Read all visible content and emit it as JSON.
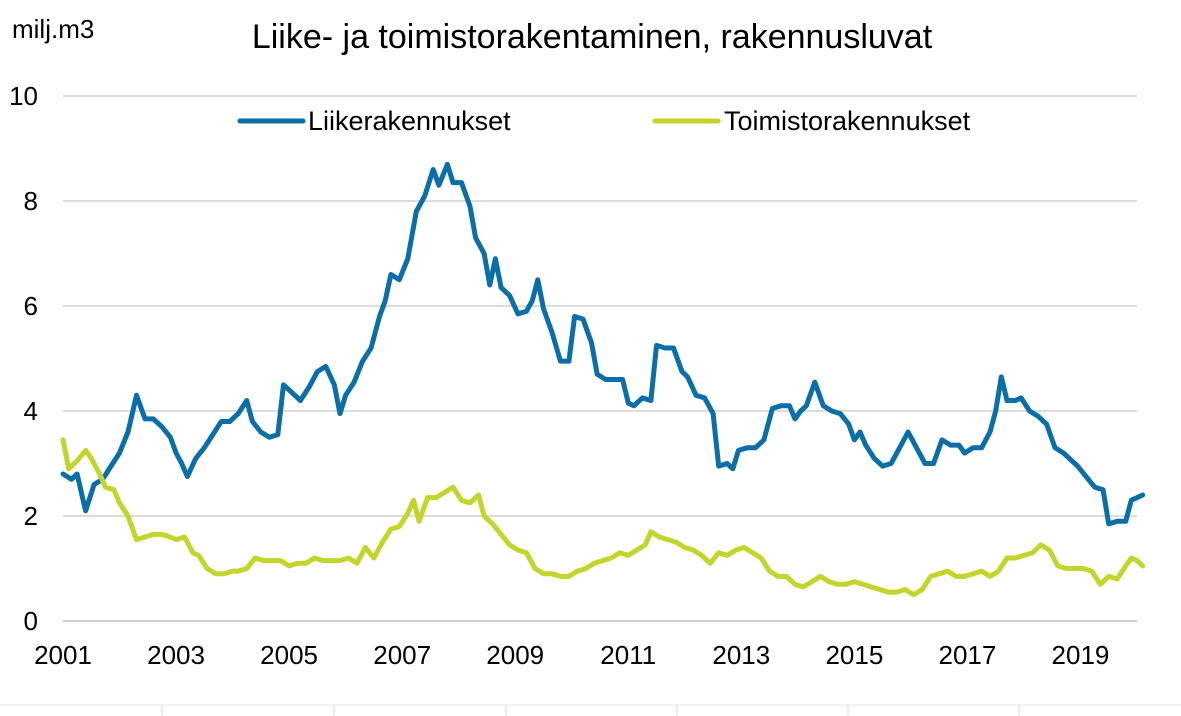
{
  "chart_data": {
    "type": "line",
    "title": "Liike- ja toimistorakentaminen, rakennusluvat",
    "ylabel": "milj.m3",
    "xlabel": "",
    "xlim": [
      2001,
      2020
    ],
    "ylim": [
      0,
      10
    ],
    "yticks": [
      0,
      2,
      4,
      6,
      8,
      10
    ],
    "ytick_labels": [
      "0",
      "2",
      "4",
      "6",
      "8",
      "10"
    ],
    "xticks": [
      2001,
      2003,
      2005,
      2007,
      2009,
      2011,
      2013,
      2015,
      2017,
      2019
    ],
    "xtick_labels": [
      "2001",
      "2003",
      "2005",
      "2007",
      "2009",
      "2011",
      "2013",
      "2015",
      "2017",
      "2019"
    ],
    "grid": "horizontal",
    "legend_position": "top",
    "series": [
      {
        "name": "Liikerakennukset",
        "color": "#0a6ea8",
        "points": [
          [
            2001.0,
            2.8
          ],
          [
            2001.15,
            2.7
          ],
          [
            2001.25,
            2.8
          ],
          [
            2001.4,
            2.1
          ],
          [
            2001.55,
            2.6
          ],
          [
            2001.7,
            2.7
          ],
          [
            2001.85,
            2.95
          ],
          [
            2002.0,
            3.2
          ],
          [
            2002.15,
            3.6
          ],
          [
            2002.3,
            4.3
          ],
          [
            2002.45,
            3.85
          ],
          [
            2002.6,
            3.85
          ],
          [
            2002.75,
            3.7
          ],
          [
            2002.9,
            3.5
          ],
          [
            2003.0,
            3.2
          ],
          [
            2003.1,
            3.0
          ],
          [
            2003.2,
            2.75
          ],
          [
            2003.35,
            3.1
          ],
          [
            2003.5,
            3.3
          ],
          [
            2003.65,
            3.55
          ],
          [
            2003.8,
            3.8
          ],
          [
            2003.95,
            3.8
          ],
          [
            2004.1,
            3.95
          ],
          [
            2004.25,
            4.2
          ],
          [
            2004.35,
            3.8
          ],
          [
            2004.5,
            3.6
          ],
          [
            2004.65,
            3.5
          ],
          [
            2004.8,
            3.55
          ],
          [
            2004.9,
            4.5
          ],
          [
            2005.05,
            4.35
          ],
          [
            2005.2,
            4.2
          ],
          [
            2005.35,
            4.45
          ],
          [
            2005.5,
            4.75
          ],
          [
            2005.65,
            4.85
          ],
          [
            2005.8,
            4.5
          ],
          [
            2005.9,
            3.95
          ],
          [
            2006.0,
            4.3
          ],
          [
            2006.15,
            4.55
          ],
          [
            2006.3,
            4.95
          ],
          [
            2006.45,
            5.2
          ],
          [
            2006.6,
            5.8
          ],
          [
            2006.7,
            6.1
          ],
          [
            2006.8,
            6.6
          ],
          [
            2006.95,
            6.5
          ],
          [
            2007.1,
            6.9
          ],
          [
            2007.25,
            7.8
          ],
          [
            2007.4,
            8.1
          ],
          [
            2007.55,
            8.6
          ],
          [
            2007.65,
            8.3
          ],
          [
            2007.8,
            8.7
          ],
          [
            2007.9,
            8.35
          ],
          [
            2008.05,
            8.35
          ],
          [
            2008.2,
            7.9
          ],
          [
            2008.3,
            7.3
          ],
          [
            2008.45,
            7.0
          ],
          [
            2008.55,
            6.4
          ],
          [
            2008.65,
            6.9
          ],
          [
            2008.75,
            6.35
          ],
          [
            2008.9,
            6.2
          ],
          [
            2009.05,
            5.85
          ],
          [
            2009.2,
            5.9
          ],
          [
            2009.3,
            6.1
          ],
          [
            2009.4,
            6.5
          ],
          [
            2009.5,
            5.95
          ],
          [
            2009.65,
            5.5
          ],
          [
            2009.8,
            4.95
          ],
          [
            2009.95,
            4.95
          ],
          [
            2010.05,
            5.8
          ],
          [
            2010.2,
            5.75
          ],
          [
            2010.35,
            5.3
          ],
          [
            2010.45,
            4.7
          ],
          [
            2010.6,
            4.6
          ],
          [
            2010.75,
            4.6
          ],
          [
            2010.9,
            4.6
          ],
          [
            2011.0,
            4.15
          ],
          [
            2011.1,
            4.1
          ],
          [
            2011.25,
            4.25
          ],
          [
            2011.4,
            4.2
          ],
          [
            2011.5,
            5.25
          ],
          [
            2011.65,
            5.2
          ],
          [
            2011.8,
            5.2
          ],
          [
            2011.95,
            4.75
          ],
          [
            2012.05,
            4.65
          ],
          [
            2012.2,
            4.3
          ],
          [
            2012.35,
            4.25
          ],
          [
            2012.5,
            3.95
          ],
          [
            2012.6,
            2.95
          ],
          [
            2012.75,
            3.0
          ],
          [
            2012.85,
            2.9
          ],
          [
            2012.95,
            3.25
          ],
          [
            2013.1,
            3.3
          ],
          [
            2013.25,
            3.3
          ],
          [
            2013.4,
            3.45
          ],
          [
            2013.55,
            4.05
          ],
          [
            2013.7,
            4.1
          ],
          [
            2013.85,
            4.1
          ],
          [
            2013.95,
            3.85
          ],
          [
            2014.05,
            4.0
          ],
          [
            2014.15,
            4.1
          ],
          [
            2014.3,
            4.55
          ],
          [
            2014.45,
            4.1
          ],
          [
            2014.6,
            4.0
          ],
          [
            2014.75,
            3.95
          ],
          [
            2014.9,
            3.75
          ],
          [
            2015.0,
            3.45
          ],
          [
            2015.1,
            3.6
          ],
          [
            2015.2,
            3.35
          ],
          [
            2015.35,
            3.1
          ],
          [
            2015.5,
            2.95
          ],
          [
            2015.65,
            3.0
          ],
          [
            2015.8,
            3.3
          ],
          [
            2015.95,
            3.6
          ],
          [
            2016.1,
            3.3
          ],
          [
            2016.25,
            3.0
          ],
          [
            2016.4,
            3.0
          ],
          [
            2016.55,
            3.45
          ],
          [
            2016.7,
            3.35
          ],
          [
            2016.85,
            3.35
          ],
          [
            2016.95,
            3.2
          ],
          [
            2017.1,
            3.3
          ],
          [
            2017.25,
            3.3
          ],
          [
            2017.4,
            3.6
          ],
          [
            2017.5,
            4.0
          ],
          [
            2017.6,
            4.65
          ],
          [
            2017.7,
            4.2
          ],
          [
            2017.85,
            4.2
          ],
          [
            2017.95,
            4.25
          ],
          [
            2018.1,
            4.0
          ],
          [
            2018.25,
            3.9
          ],
          [
            2018.4,
            3.75
          ],
          [
            2018.55,
            3.3
          ],
          [
            2018.7,
            3.2
          ],
          [
            2018.85,
            3.05
          ],
          [
            2018.95,
            2.95
          ],
          [
            2019.1,
            2.75
          ],
          [
            2019.25,
            2.55
          ],
          [
            2019.4,
            2.5
          ],
          [
            2019.5,
            1.85
          ],
          [
            2019.65,
            1.9
          ],
          [
            2019.8,
            1.9
          ],
          [
            2019.9,
            2.3
          ],
          [
            2020.0,
            2.35
          ],
          [
            2020.1,
            2.4
          ]
        ]
      },
      {
        "name": "Toimistorakennukset",
        "color": "#c2d52b",
        "points": [
          [
            2001.0,
            3.45
          ],
          [
            2001.1,
            2.9
          ],
          [
            2001.25,
            3.05
          ],
          [
            2001.4,
            3.25
          ],
          [
            2001.5,
            3.1
          ],
          [
            2001.65,
            2.8
          ],
          [
            2001.75,
            2.55
          ],
          [
            2001.9,
            2.5
          ],
          [
            2002.0,
            2.25
          ],
          [
            2002.15,
            2.0
          ],
          [
            2002.3,
            1.55
          ],
          [
            2002.45,
            1.6
          ],
          [
            2002.6,
            1.65
          ],
          [
            2002.75,
            1.65
          ],
          [
            2002.9,
            1.6
          ],
          [
            2003.0,
            1.55
          ],
          [
            2003.15,
            1.6
          ],
          [
            2003.3,
            1.3
          ],
          [
            2003.4,
            1.25
          ],
          [
            2003.55,
            1.0
          ],
          [
            2003.7,
            0.9
          ],
          [
            2003.85,
            0.9
          ],
          [
            2004.0,
            0.95
          ],
          [
            2004.1,
            0.95
          ],
          [
            2004.25,
            1.0
          ],
          [
            2004.4,
            1.2
          ],
          [
            2004.55,
            1.15
          ],
          [
            2004.7,
            1.15
          ],
          [
            2004.85,
            1.15
          ],
          [
            2005.0,
            1.05
          ],
          [
            2005.15,
            1.1
          ],
          [
            2005.3,
            1.1
          ],
          [
            2005.45,
            1.2
          ],
          [
            2005.6,
            1.15
          ],
          [
            2005.75,
            1.15
          ],
          [
            2005.9,
            1.15
          ],
          [
            2006.05,
            1.2
          ],
          [
            2006.2,
            1.1
          ],
          [
            2006.35,
            1.4
          ],
          [
            2006.5,
            1.2
          ],
          [
            2006.65,
            1.5
          ],
          [
            2006.8,
            1.75
          ],
          [
            2006.95,
            1.8
          ],
          [
            2007.1,
            2.05
          ],
          [
            2007.2,
            2.3
          ],
          [
            2007.3,
            1.9
          ],
          [
            2007.45,
            2.35
          ],
          [
            2007.6,
            2.35
          ],
          [
            2007.75,
            2.45
          ],
          [
            2007.9,
            2.55
          ],
          [
            2008.05,
            2.3
          ],
          [
            2008.2,
            2.25
          ],
          [
            2008.35,
            2.4
          ],
          [
            2008.45,
            2.0
          ],
          [
            2008.6,
            1.85
          ],
          [
            2008.75,
            1.65
          ],
          [
            2008.9,
            1.45
          ],
          [
            2009.05,
            1.35
          ],
          [
            2009.2,
            1.3
          ],
          [
            2009.35,
            1.0
          ],
          [
            2009.5,
            0.9
          ],
          [
            2009.65,
            0.9
          ],
          [
            2009.8,
            0.85
          ],
          [
            2009.95,
            0.85
          ],
          [
            2010.1,
            0.95
          ],
          [
            2010.25,
            1.0
          ],
          [
            2010.4,
            1.1
          ],
          [
            2010.55,
            1.15
          ],
          [
            2010.7,
            1.2
          ],
          [
            2010.85,
            1.3
          ],
          [
            2011.0,
            1.25
          ],
          [
            2011.15,
            1.35
          ],
          [
            2011.3,
            1.45
          ],
          [
            2011.4,
            1.7
          ],
          [
            2011.55,
            1.6
          ],
          [
            2011.7,
            1.55
          ],
          [
            2011.85,
            1.5
          ],
          [
            2012.0,
            1.4
          ],
          [
            2012.15,
            1.35
          ],
          [
            2012.3,
            1.25
          ],
          [
            2012.45,
            1.1
          ],
          [
            2012.6,
            1.3
          ],
          [
            2012.75,
            1.25
          ],
          [
            2012.9,
            1.35
          ],
          [
            2013.05,
            1.4
          ],
          [
            2013.2,
            1.3
          ],
          [
            2013.35,
            1.2
          ],
          [
            2013.5,
            0.95
          ],
          [
            2013.65,
            0.85
          ],
          [
            2013.8,
            0.85
          ],
          [
            2013.95,
            0.7
          ],
          [
            2014.1,
            0.65
          ],
          [
            2014.25,
            0.75
          ],
          [
            2014.4,
            0.85
          ],
          [
            2014.55,
            0.75
          ],
          [
            2014.7,
            0.7
          ],
          [
            2014.85,
            0.7
          ],
          [
            2015.0,
            0.75
          ],
          [
            2015.15,
            0.7
          ],
          [
            2015.3,
            0.65
          ],
          [
            2015.45,
            0.6
          ],
          [
            2015.6,
            0.55
          ],
          [
            2015.75,
            0.55
          ],
          [
            2015.9,
            0.6
          ],
          [
            2016.05,
            0.5
          ],
          [
            2016.2,
            0.6
          ],
          [
            2016.35,
            0.85
          ],
          [
            2016.5,
            0.9
          ],
          [
            2016.65,
            0.95
          ],
          [
            2016.8,
            0.85
          ],
          [
            2016.95,
            0.85
          ],
          [
            2017.1,
            0.9
          ],
          [
            2017.25,
            0.95
          ],
          [
            2017.4,
            0.85
          ],
          [
            2017.55,
            0.95
          ],
          [
            2017.7,
            1.2
          ],
          [
            2017.85,
            1.2
          ],
          [
            2018.0,
            1.25
          ],
          [
            2018.15,
            1.3
          ],
          [
            2018.3,
            1.45
          ],
          [
            2018.45,
            1.35
          ],
          [
            2018.6,
            1.05
          ],
          [
            2018.75,
            1.0
          ],
          [
            2018.9,
            1.0
          ],
          [
            2019.05,
            1.0
          ],
          [
            2019.2,
            0.95
          ],
          [
            2019.35,
            0.7
          ],
          [
            2019.5,
            0.85
          ],
          [
            2019.65,
            0.8
          ],
          [
            2019.8,
            1.05
          ],
          [
            2019.9,
            1.2
          ],
          [
            2020.0,
            1.15
          ],
          [
            2020.1,
            1.05
          ]
        ]
      }
    ]
  }
}
